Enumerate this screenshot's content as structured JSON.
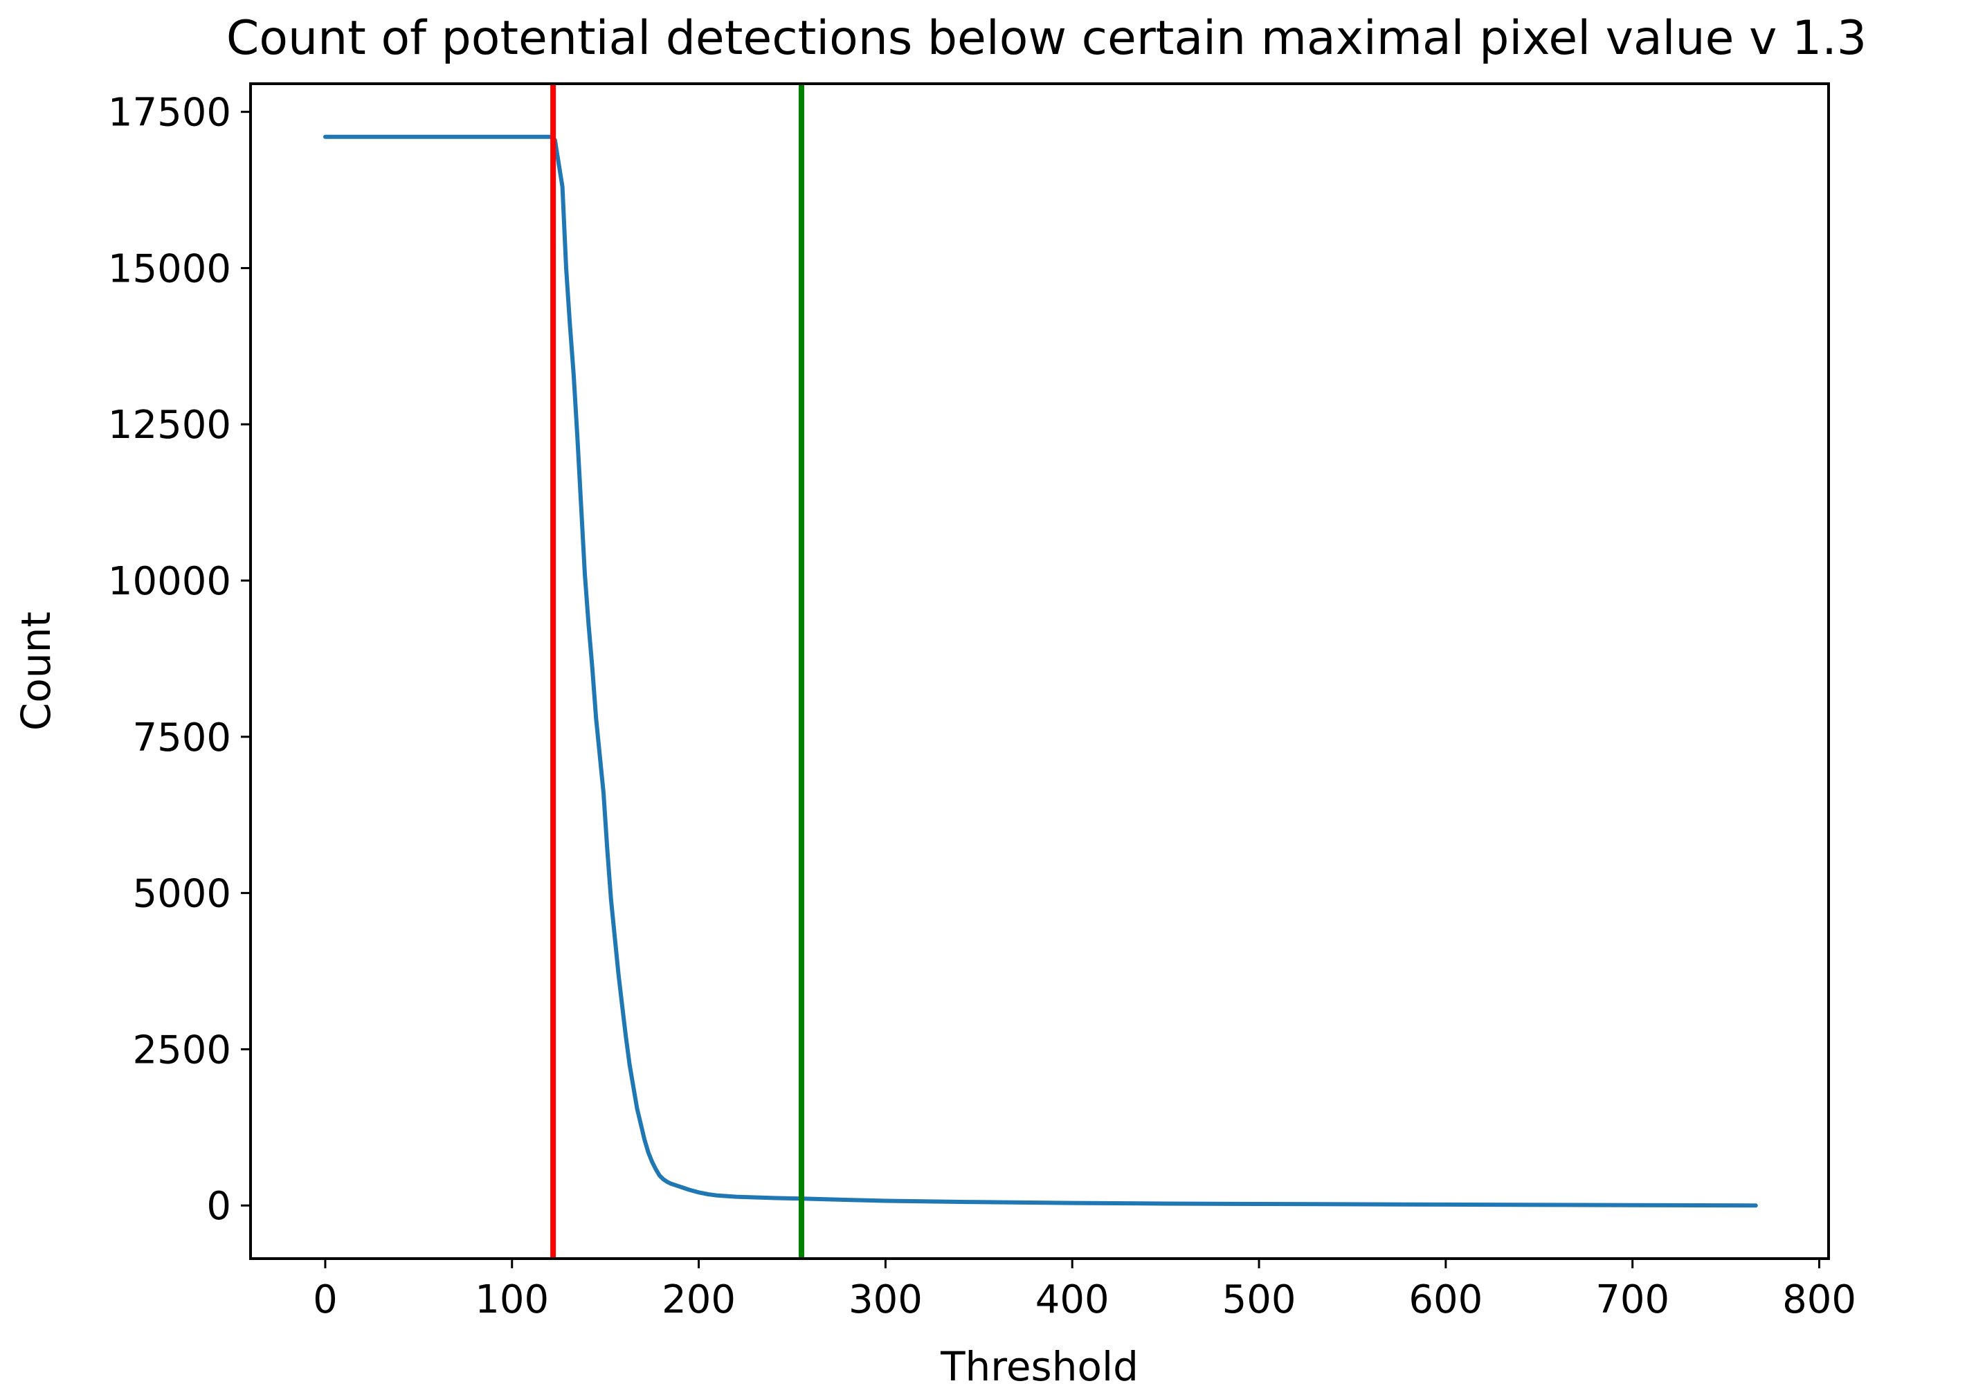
{
  "chart_data": {
    "type": "line",
    "title": "Count of potential detections below certain maximal pixel value v 1.3",
    "xlabel": "Threshold",
    "ylabel": "Count",
    "xlim": [
      -40,
      805
    ],
    "ylim": [
      -850,
      17950
    ],
    "xticks": [
      0,
      100,
      200,
      300,
      400,
      500,
      600,
      700,
      800
    ],
    "yticks": [
      0,
      2500,
      5000,
      7500,
      10000,
      12500,
      15000,
      17500
    ],
    "grid": false,
    "series": [
      {
        "color": "#1f77b4",
        "x": [
          0,
          121,
          123,
          127,
          129,
          131,
          133,
          135,
          137,
          139,
          141,
          143,
          145,
          147,
          149,
          151,
          153,
          155,
          157,
          159,
          161,
          163,
          165,
          167,
          169,
          171,
          173,
          175,
          177,
          179,
          181,
          183,
          185,
          187,
          189,
          191,
          195,
          200,
          205,
          210,
          220,
          230,
          240,
          255,
          280,
          300,
          350,
          400,
          450,
          500,
          600,
          700,
          766
        ],
        "y": [
          17100,
          17100,
          17050,
          16300,
          15000,
          14100,
          13300,
          12300,
          11200,
          10100,
          9300,
          8600,
          7800,
          7200,
          6600,
          5700,
          4900,
          4300,
          3700,
          3200,
          2700,
          2250,
          1900,
          1550,
          1300,
          1050,
          850,
          700,
          580,
          480,
          420,
          380,
          350,
          330,
          310,
          290,
          250,
          210,
          180,
          160,
          140,
          130,
          120,
          110,
          90,
          75,
          55,
          40,
          30,
          25,
          15,
          5,
          0
        ]
      }
    ],
    "vlines": [
      {
        "x": 122,
        "color": "#ff0000"
      },
      {
        "x": 255,
        "color": "#008000"
      }
    ]
  }
}
